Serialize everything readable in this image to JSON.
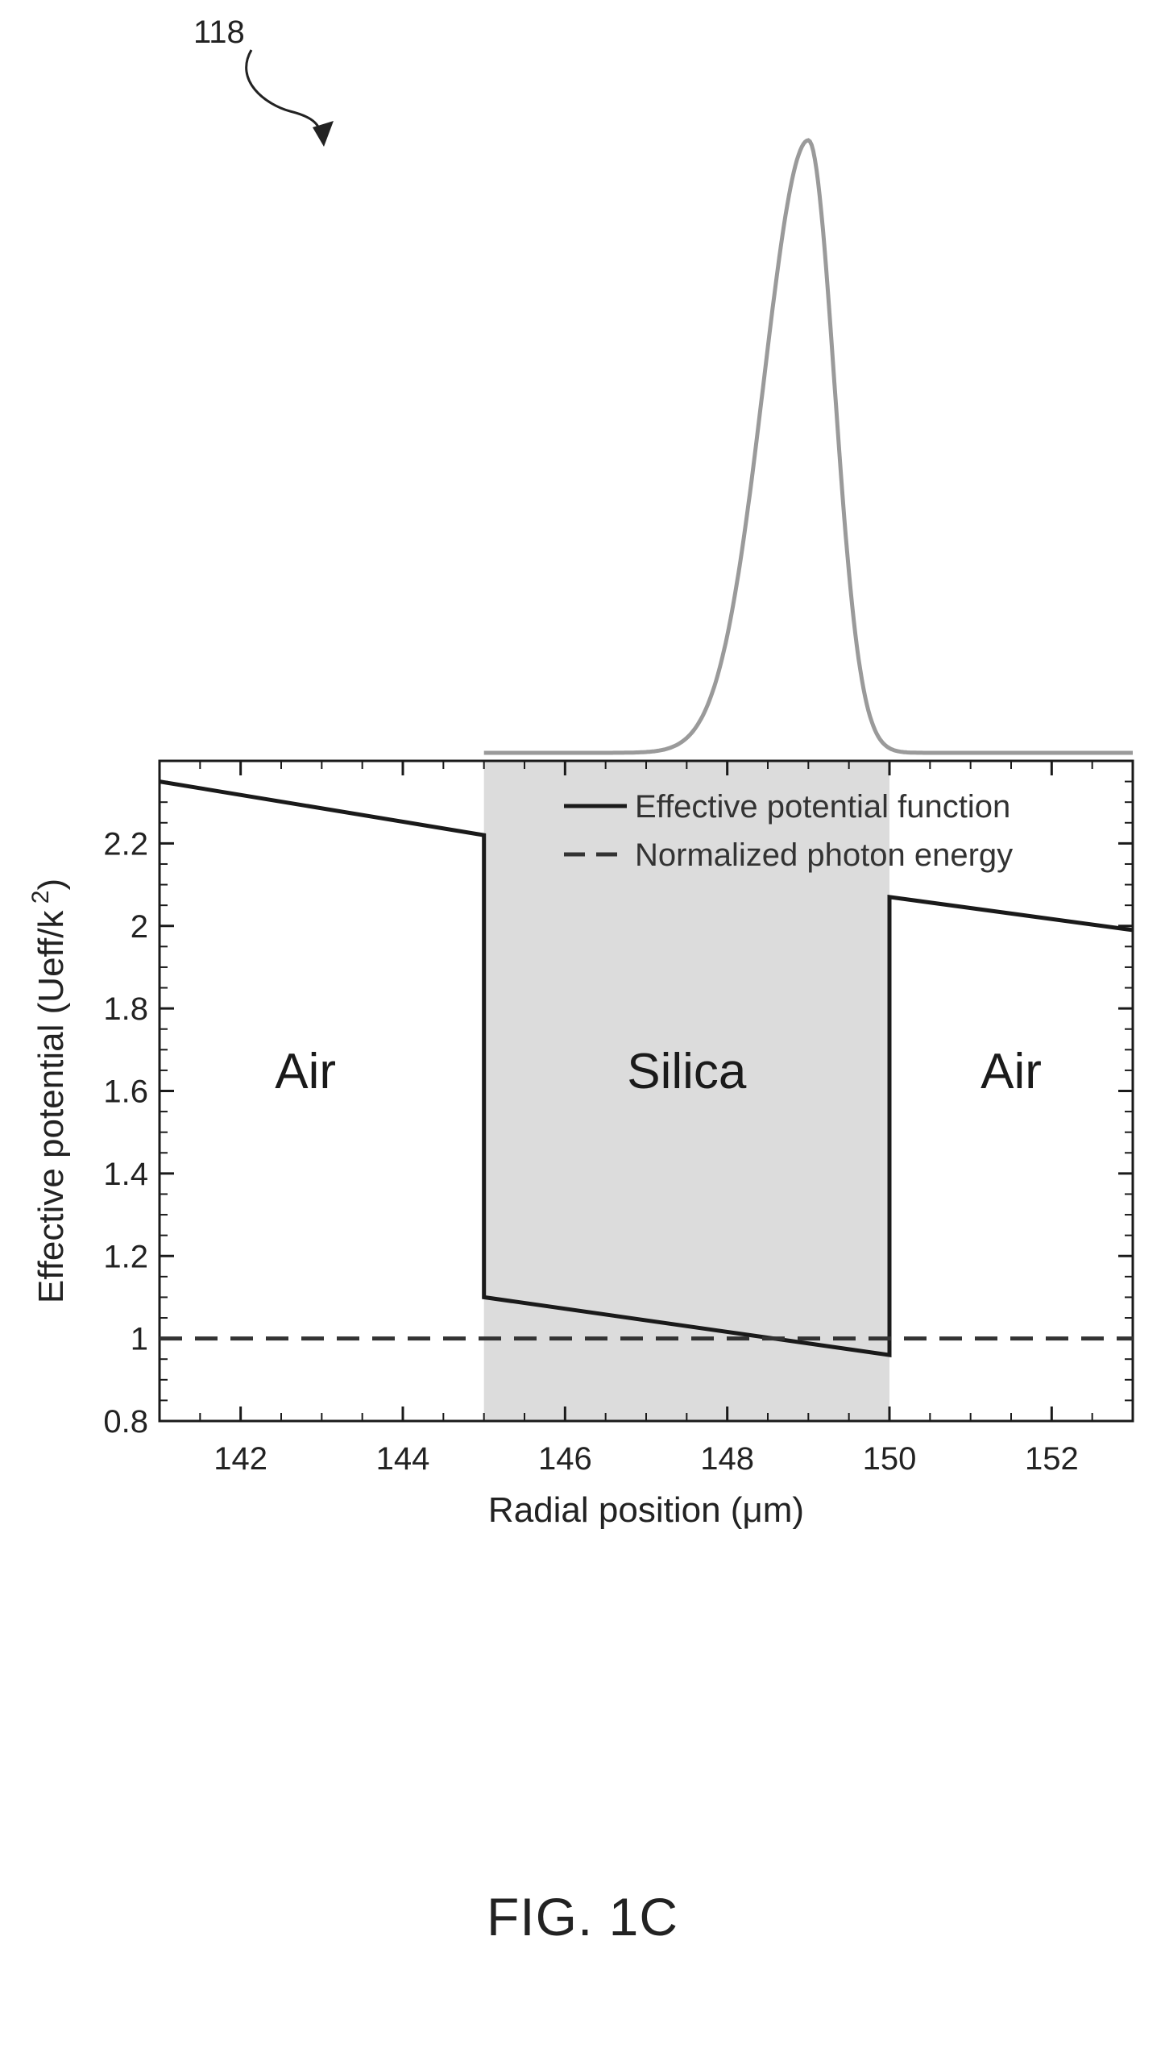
{
  "figure": {
    "reference_numeral": "118",
    "caption": "FIG. 1C"
  },
  "colors": {
    "axis": "#1a1a1a",
    "potential_line": "#1a1a1a",
    "photon_line": "#333333",
    "mode_profile": "#9a9a9a",
    "silica_fill": "#dcdcdc"
  },
  "chart_data": {
    "type": "line",
    "xlabel": "Radial position (μm)",
    "ylabel": "Effective potential (Ueff/k",
    "ylabel_sup": "2",
    "ylabel_close": ")",
    "xlim": [
      141,
      153
    ],
    "ylim": [
      0.8,
      2.4
    ],
    "grid": false,
    "legend_position": "top-right",
    "x_ticks": [
      142,
      144,
      146,
      148,
      150,
      152
    ],
    "x_tick_labels": [
      "142",
      "144",
      "146",
      "148",
      "150",
      "152"
    ],
    "y_ticks": [
      0.8,
      1,
      1.2,
      1.4,
      1.6,
      1.8,
      2,
      2.2
    ],
    "y_tick_labels": [
      "0.8",
      "1",
      "1.2",
      "1.4",
      "1.6",
      "1.8",
      "2",
      "2.2"
    ],
    "regions": [
      {
        "label": "Air",
        "x_range": [
          141,
          145
        ],
        "label_x": 142.8,
        "label_y": 1.65
      },
      {
        "label": "Silica",
        "x_range": [
          145,
          150
        ],
        "label_x": 147.5,
        "label_y": 1.65,
        "shaded": true
      },
      {
        "label": "Air",
        "x_range": [
          150,
          153
        ],
        "label_x": 151.5,
        "label_y": 1.65
      }
    ],
    "series": [
      {
        "name": "Effective potential function",
        "style": "solid",
        "x": [
          141,
          145,
          145,
          150,
          150,
          153
        ],
        "y": [
          2.35,
          2.22,
          1.1,
          0.96,
          2.07,
          1.99
        ]
      },
      {
        "name": "Normalized photon energy",
        "style": "dashed",
        "x": [
          141,
          153
        ],
        "y": [
          1.0,
          1.0
        ]
      }
    ],
    "mode_profile": {
      "x_range": [
        145,
        153
      ],
      "peak_x": 149,
      "peak_height_rel": 1.0,
      "left_width": 0.55,
      "right_width": 0.32
    }
  }
}
